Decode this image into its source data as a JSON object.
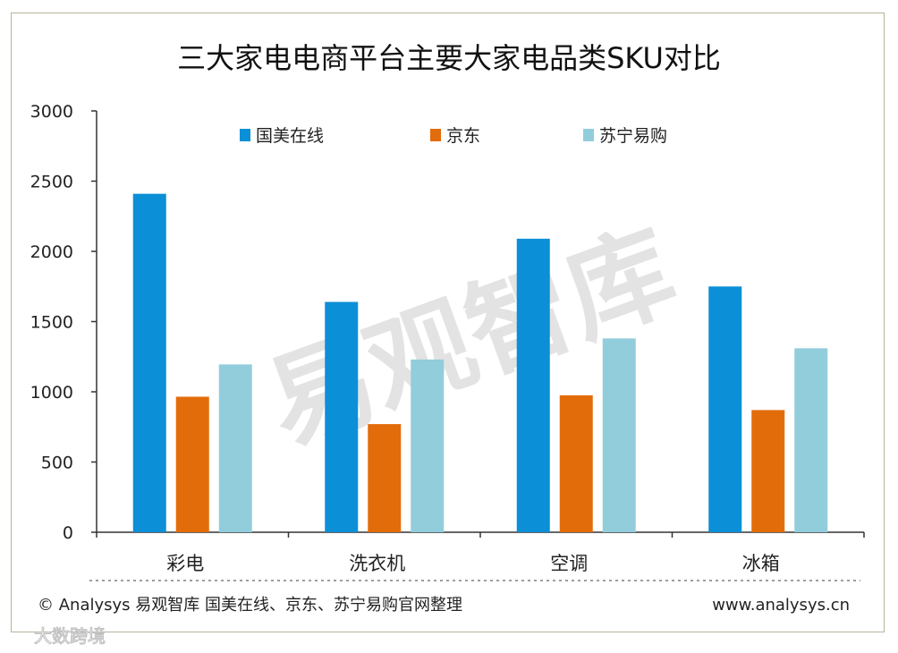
{
  "chart_data": {
    "type": "bar",
    "title": "三大家电电商平台主要大家电品类SKU对比",
    "categories": [
      "彩电",
      "洗衣机",
      "空调",
      "冰箱"
    ],
    "series": [
      {
        "name": "国美在线",
        "color": "#0b8fd6",
        "values": [
          2410,
          1640,
          2090,
          1750
        ]
      },
      {
        "name": "京东",
        "color": "#e36c0a",
        "values": [
          965,
          770,
          975,
          870
        ]
      },
      {
        "name": "苏宁易购",
        "color": "#92cddc",
        "values": [
          1195,
          1230,
          1380,
          1310
        ]
      }
    ],
    "ylim": [
      0,
      3000
    ],
    "yticks": [
      "0",
      "500",
      "1000",
      "1500",
      "2000",
      "2500",
      "3000"
    ],
    "grid": false,
    "legend_position": "top"
  },
  "footer": {
    "source": "© Analysys 易观智库 国美在线、京东、苏宁易购官网整理",
    "website": "www.analysys.cn"
  },
  "watermarks": {
    "main": "易观智库",
    "corner": "大数跨境"
  }
}
